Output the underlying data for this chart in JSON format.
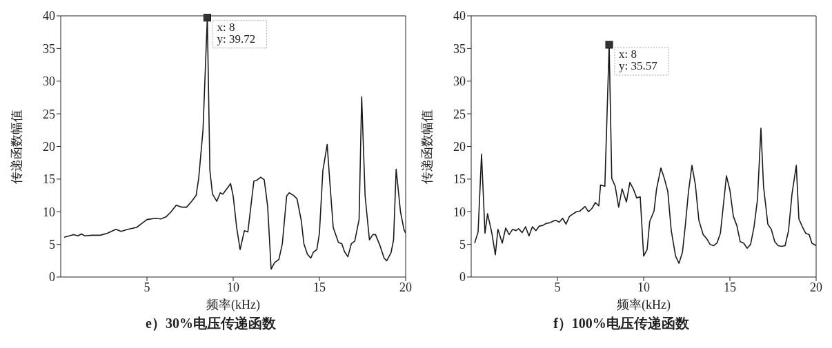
{
  "chart_data": [
    {
      "type": "line",
      "title": "e）30%电压传递函数",
      "xlabel": "频率(kHz)",
      "ylabel": "传递函数幅值",
      "xlim": [
        0,
        20
      ],
      "xticks": [
        5,
        10,
        15,
        20
      ],
      "ylim": [
        0,
        40
      ],
      "yticks": [
        0,
        5,
        10,
        15,
        20,
        25,
        30,
        35,
        40
      ],
      "grid": false,
      "legend": false,
      "series": [
        {
          "color": "#1a1a1a",
          "x": [
            0.2,
            0.5,
            0.75,
            1.0,
            1.2,
            1.4,
            1.8,
            2.3,
            2.7,
            3.2,
            3.5,
            3.9,
            4.4,
            4.8,
            5.0,
            5.5,
            5.8,
            6.1,
            6.4,
            6.7,
            7.0,
            7.3,
            7.6,
            7.85,
            8.0,
            8.25,
            8.5,
            8.65,
            8.8,
            9.05,
            9.25,
            9.4,
            9.85,
            10.0,
            10.2,
            10.4,
            10.65,
            10.85,
            11.2,
            11.35,
            11.6,
            11.8,
            12.0,
            12.2,
            12.4,
            12.65,
            12.85,
            13.1,
            13.25,
            13.5,
            13.7,
            13.95,
            14.1,
            14.3,
            14.5,
            14.65,
            14.85,
            15.0,
            15.2,
            15.45,
            15.6,
            15.8,
            16.1,
            16.3,
            16.45,
            16.65,
            16.85,
            17.05,
            17.3,
            17.45,
            17.65,
            17.9,
            18.1,
            18.25,
            18.5,
            18.75,
            18.9,
            19.15,
            19.3,
            19.45,
            19.7,
            19.9,
            20.0
          ],
          "values": [
            6.1,
            6.3,
            6.5,
            6.3,
            6.6,
            6.3,
            6.4,
            6.4,
            6.7,
            7.3,
            7.0,
            7.3,
            7.6,
            8.4,
            8.8,
            9.0,
            8.9,
            9.2,
            10.0,
            11.0,
            10.7,
            10.7,
            11.6,
            12.5,
            15.1,
            22.5,
            39.72,
            16.3,
            12.7,
            11.6,
            12.9,
            12.7,
            14.3,
            12.4,
            7.6,
            4.2,
            7.1,
            6.9,
            14.7,
            14.8,
            15.3,
            14.9,
            10.8,
            1.2,
            2.2,
            2.7,
            5.1,
            12.4,
            12.9,
            12.5,
            12.0,
            8.6,
            5.1,
            3.5,
            2.9,
            3.8,
            4.2,
            6.7,
            16.3,
            20.3,
            14.7,
            7.6,
            5.3,
            5.1,
            3.9,
            3.1,
            5.1,
            5.5,
            8.8,
            27.6,
            12.4,
            5.7,
            6.5,
            6.5,
            4.9,
            2.9,
            2.5,
            3.7,
            5.7,
            16.5,
            10.0,
            7.3,
            6.7
          ]
        }
      ],
      "annotations": [
        {
          "text": "x: 8\ny: 39.72",
          "x": 8.5,
          "y": 39.72
        }
      ]
    },
    {
      "type": "line",
      "title": "f）100%电压传递函数",
      "xlabel": "频率(kHz)",
      "ylabel": "传递函数幅值",
      "xlim": [
        0,
        20
      ],
      "xticks": [
        5,
        10,
        15,
        20
      ],
      "ylim": [
        0,
        40
      ],
      "yticks": [
        0,
        5,
        10,
        15,
        20,
        25,
        30,
        35,
        40
      ],
      "grid": false,
      "legend": false,
      "series": [
        {
          "color": "#1a1a1a",
          "x": [
            0.2,
            0.4,
            0.6,
            0.8,
            0.95,
            1.2,
            1.4,
            1.55,
            1.8,
            2.0,
            2.2,
            2.4,
            2.6,
            2.75,
            2.95,
            3.15,
            3.35,
            3.55,
            3.75,
            3.95,
            4.15,
            4.35,
            4.55,
            4.7,
            4.9,
            5.1,
            5.3,
            5.5,
            5.7,
            6.1,
            6.3,
            6.6,
            6.8,
            7.0,
            7.2,
            7.4,
            7.5,
            7.75,
            8.0,
            8.15,
            8.35,
            8.55,
            8.75,
            9.0,
            9.2,
            9.4,
            9.6,
            9.8,
            10.0,
            10.2,
            10.35,
            10.6,
            10.75,
            11.0,
            11.2,
            11.4,
            11.6,
            11.85,
            12.05,
            12.25,
            12.4,
            12.6,
            12.8,
            13.0,
            13.2,
            13.45,
            13.65,
            13.85,
            14.05,
            14.25,
            14.45,
            14.8,
            15.0,
            15.2,
            15.4,
            15.6,
            15.8,
            16.0,
            16.2,
            16.4,
            16.6,
            16.8,
            16.95,
            17.2,
            17.4,
            17.6,
            17.8,
            18.0,
            18.2,
            18.4,
            18.6,
            18.85,
            19.0,
            19.2,
            19.4,
            19.6,
            19.75,
            20.0
          ],
          "values": [
            5.2,
            6.9,
            18.8,
            6.7,
            9.7,
            6.7,
            3.4,
            7.3,
            5.2,
            7.5,
            6.5,
            7.3,
            7.1,
            7.4,
            6.8,
            7.7,
            6.3,
            7.7,
            7.1,
            7.8,
            7.9,
            8.2,
            8.3,
            8.5,
            8.7,
            8.4,
            9.0,
            8.1,
            9.3,
            10.0,
            10.1,
            10.8,
            10.0,
            10.5,
            11.4,
            10.9,
            14.1,
            13.9,
            35.57,
            15.1,
            13.9,
            10.7,
            13.5,
            11.5,
            14.5,
            13.5,
            12.1,
            12.3,
            3.2,
            4.2,
            8.5,
            10.1,
            13.5,
            16.7,
            15.1,
            13.1,
            7.1,
            3.2,
            2.1,
            3.8,
            7.5,
            13.1,
            17.1,
            14.1,
            8.7,
            6.5,
            5.9,
            5.0,
            4.8,
            5.2,
            6.7,
            15.5,
            13.3,
            9.3,
            7.9,
            5.4,
            5.2,
            4.4,
            5.0,
            7.7,
            11.9,
            22.8,
            13.9,
            8.1,
            7.3,
            5.4,
            4.8,
            4.7,
            4.8,
            7.1,
            12.7,
            17.1,
            8.9,
            7.7,
            6.7,
            6.5,
            5.2,
            4.8
          ]
        }
      ],
      "annotations": [
        {
          "text": "x: 8\ny: 35.57",
          "x": 8.0,
          "y": 35.57
        }
      ]
    }
  ]
}
